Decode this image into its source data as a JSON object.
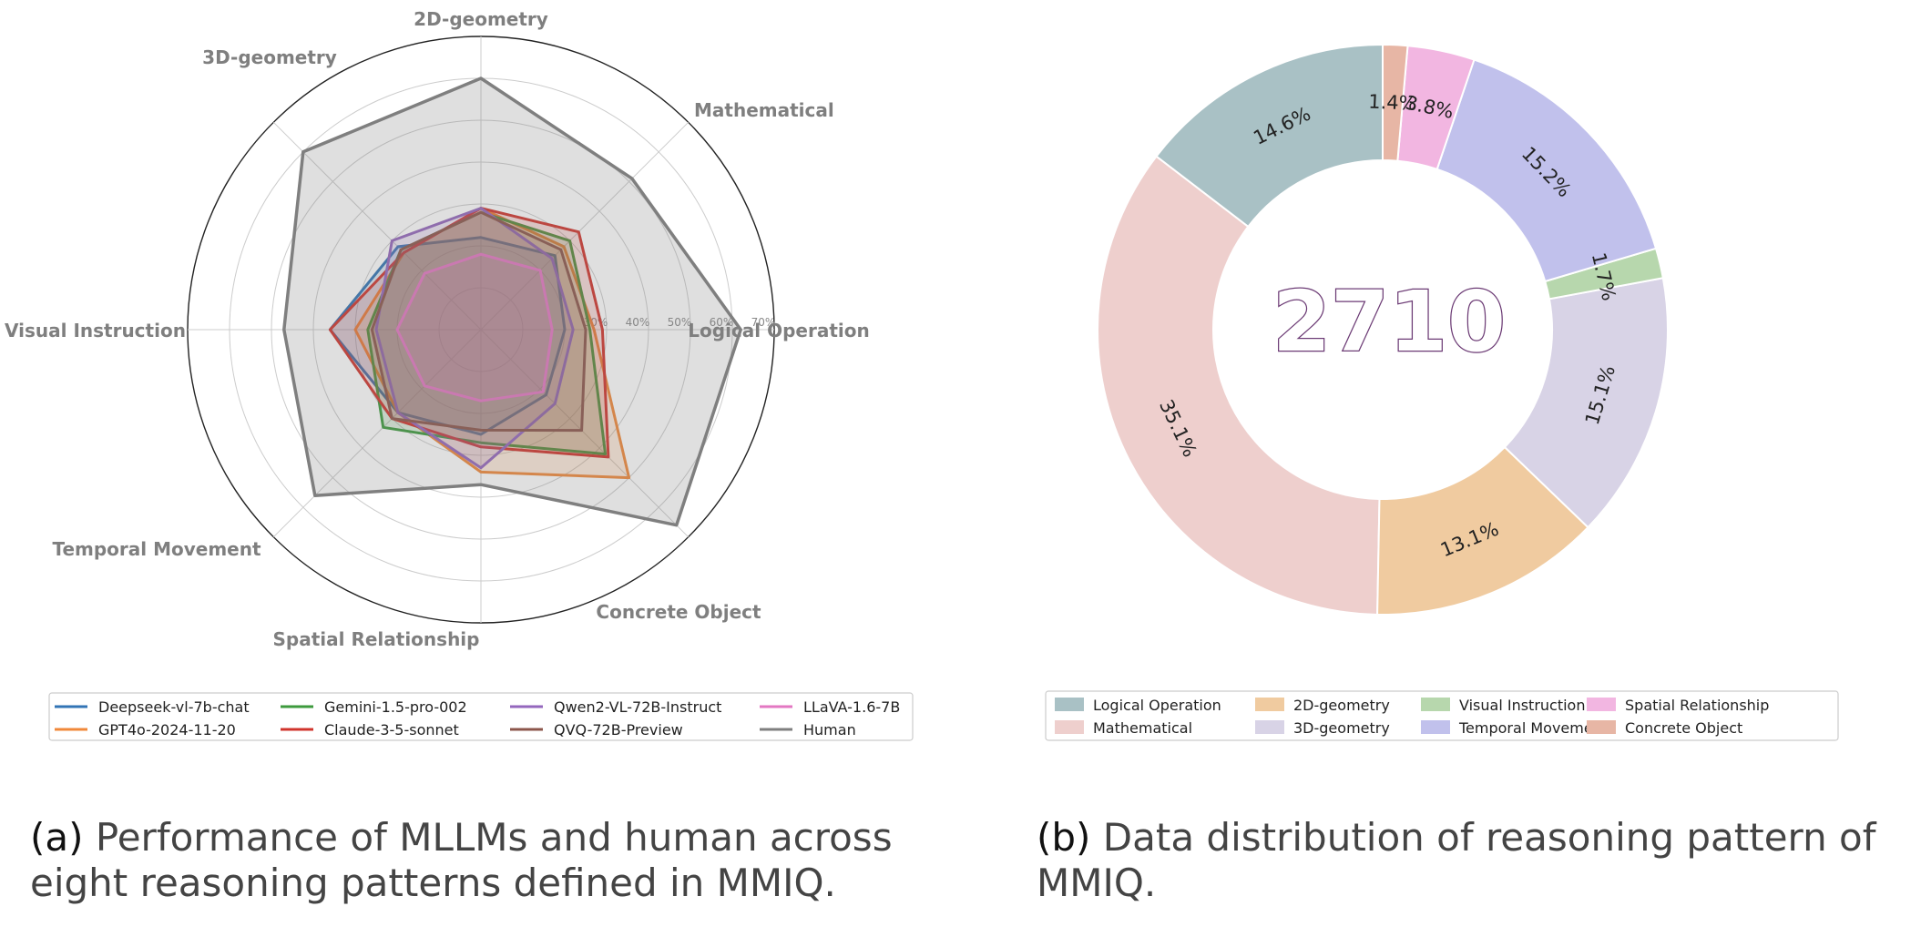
{
  "captions": {
    "a_tag": "(a)",
    "a_text": "Performance of MLLMs and human across eight reasoning patterns defined in MMIQ.",
    "b_tag": "(b)",
    "b_text": "Data distribution of reasoning pattern of MMIQ."
  },
  "chart_data": [
    {
      "type": "radar",
      "categories": [
        "Logical Operation",
        "Mathematical",
        "2D-geometry",
        "3D-geometry",
        "Visual Instruction",
        "Temporal Movement",
        "Spatial Relationship",
        "Concrete Object"
      ],
      "r_ticks": [
        30,
        40,
        50,
        60,
        70
      ],
      "r_tick_labels": [
        "30%",
        "40%",
        "50%",
        "60%",
        "70%"
      ],
      "r_range": [
        0,
        70
      ],
      "grid": true,
      "legend_position": "bottom",
      "series": [
        {
          "name": "Deepseek-vl-7b-chat",
          "color": "#3274b5",
          "values": [
            20,
            25,
            22,
            28,
            36,
            28,
            25,
            22
          ]
        },
        {
          "name": "GPT4o-2024-11-20",
          "color": "#f0883a",
          "values": [
            27,
            28,
            29,
            26,
            30,
            28,
            34,
            50
          ]
        },
        {
          "name": "Gemini-1.5-pro-002",
          "color": "#3d9a3d",
          "values": [
            26,
            30,
            28,
            27,
            27,
            33,
            27,
            42
          ]
        },
        {
          "name": "Claude-3-5-sonnet",
          "color": "#d0342c",
          "values": [
            29,
            33,
            29,
            26,
            36,
            30,
            28,
            43
          ]
        },
        {
          "name": "Qwen2-VL-72B-Instruct",
          "color": "#9467bd",
          "values": [
            22,
            24,
            29,
            30,
            25,
            28,
            33,
            25
          ]
        },
        {
          "name": "QVQ-72B-Preview",
          "color": "#8c564b",
          "values": [
            25,
            27,
            28,
            27,
            26,
            30,
            24,
            34
          ]
        },
        {
          "name": "LLaVA-1.6-7B",
          "color": "#e377c2",
          "values": [
            17,
            20,
            18,
            19,
            20,
            19,
            17,
            21
          ]
        },
        {
          "name": "Human",
          "color": "#7f7f7f",
          "values": [
            62,
            51,
            60,
            60,
            47,
            56,
            37,
            66
          ]
        }
      ]
    },
    {
      "type": "pie",
      "donut": true,
      "center_label": "2710",
      "start_angle_deg": 90,
      "direction": "counterclockwise",
      "categories": [
        "Logical Operation",
        "Mathematical",
        "2D-geometry",
        "3D-geometry",
        "Visual Instruction",
        "Temporal Movement",
        "Spatial Relationship",
        "Concrete Object"
      ],
      "values": [
        14.6,
        35.1,
        13.1,
        15.1,
        1.7,
        15.2,
        3.8,
        1.4
      ],
      "labels": [
        "14.6%",
        "35.1%",
        "13.1%",
        "15.1%",
        "1.7%",
        "15.2%",
        "3.8%",
        "1.4%"
      ],
      "colors": [
        "#a9c1c5",
        "#eecfcd",
        "#f0cba0",
        "#d8d3e6",
        "#b7d7ad",
        "#c1c1ec",
        "#f2b6e1",
        "#e7b6a5"
      ],
      "legend_position": "bottom"
    }
  ]
}
